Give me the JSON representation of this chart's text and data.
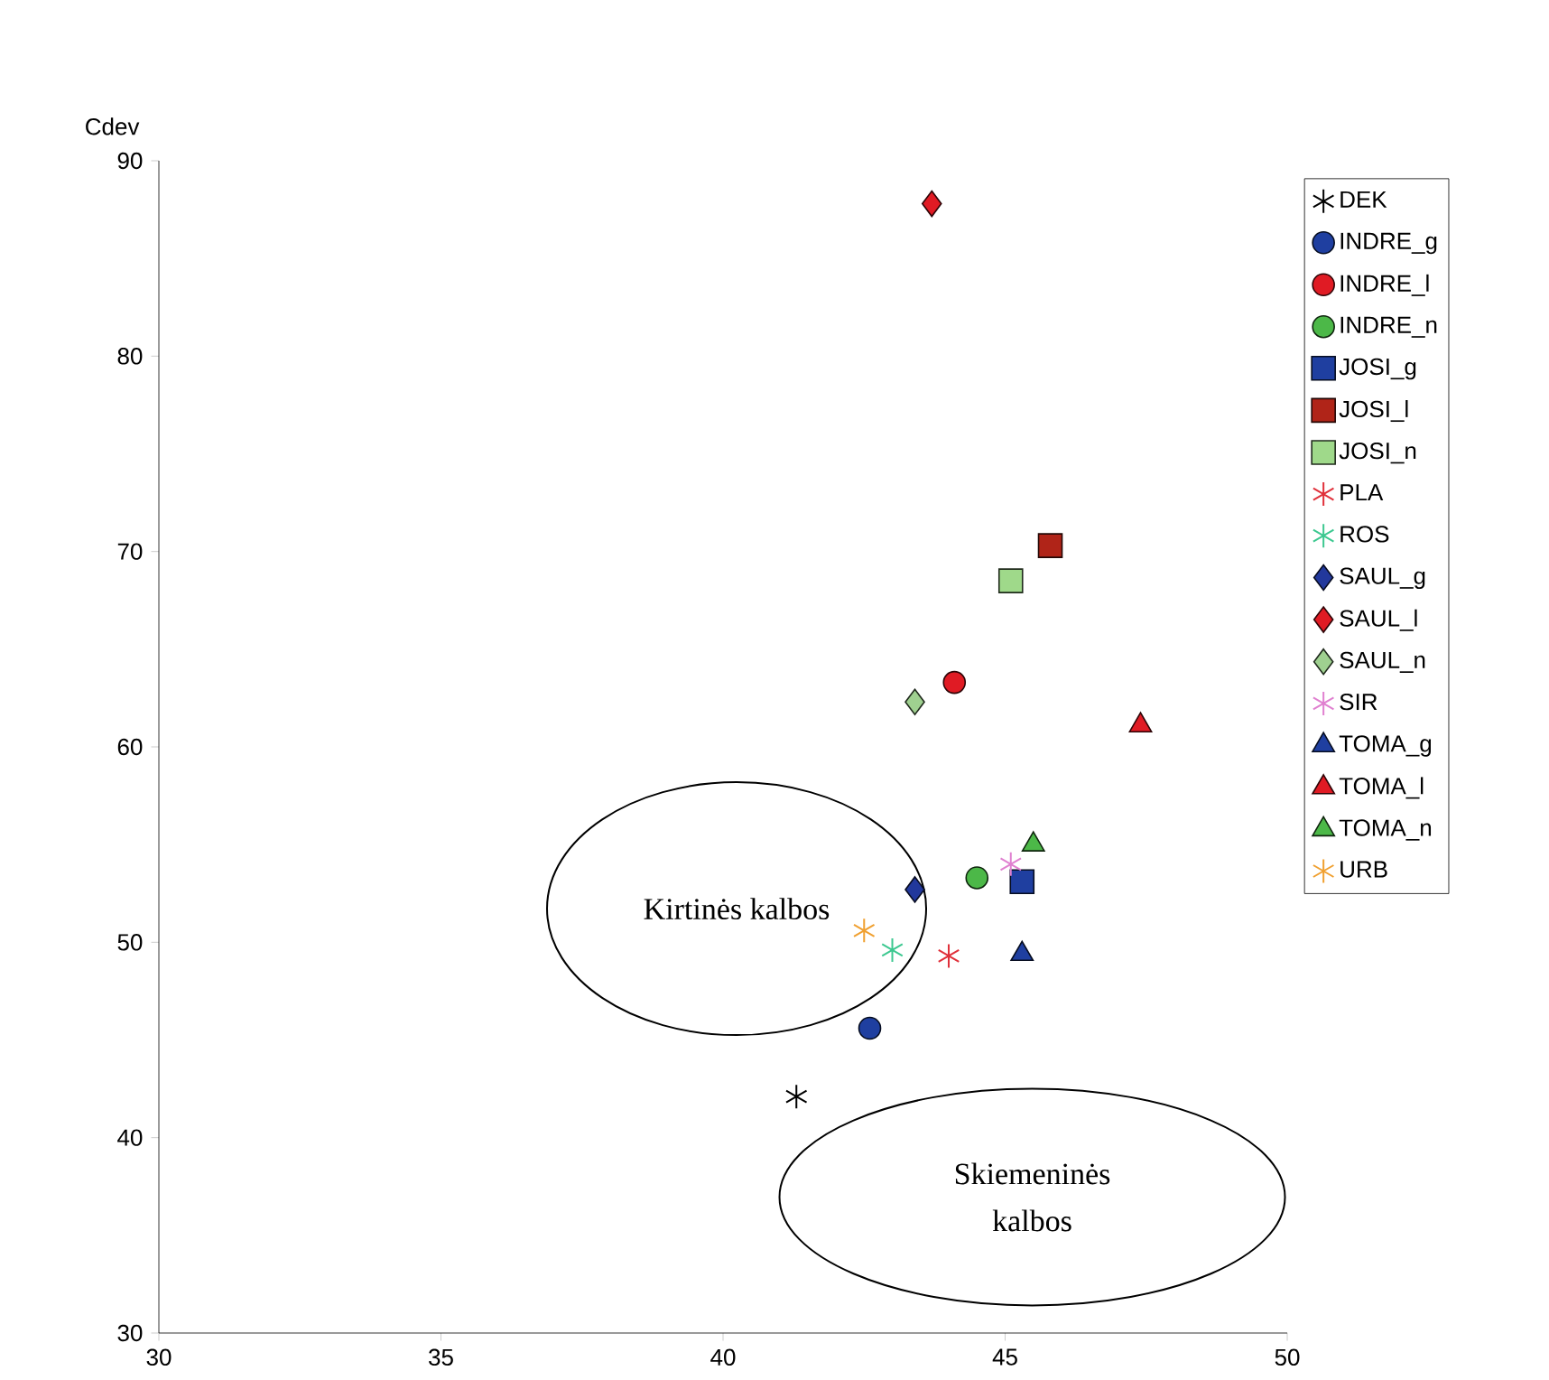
{
  "chart_data": {
    "type": "scatter",
    "ylabel": "Cdev",
    "xlim": [
      30,
      50
    ],
    "ylim": [
      30,
      90
    ],
    "xticks": [
      30,
      35,
      40,
      45,
      50
    ],
    "yticks": [
      30,
      40,
      50,
      60,
      70,
      80,
      90
    ],
    "grid": false,
    "legend": "right",
    "series": [
      {
        "name": "DEK",
        "color": "#000000",
        "marker": "cross",
        "x": [
          41.3
        ],
        "values": [
          42.1
        ]
      },
      {
        "name": "INDRE_g",
        "color": "#1f3fa0",
        "marker": "circle",
        "x": [
          42.6
        ],
        "values": [
          45.6
        ]
      },
      {
        "name": "INDRE_l",
        "color": "#e01b24",
        "marker": "circle",
        "x": [
          44.1
        ],
        "values": [
          63.3
        ]
      },
      {
        "name": "INDRE_n",
        "color": "#4cb848",
        "marker": "circle",
        "x": [
          44.5
        ],
        "values": [
          53.3
        ]
      },
      {
        "name": "JOSI_g",
        "color": "#1f3fa0",
        "marker": "square",
        "x": [
          45.3
        ],
        "values": [
          53.1
        ]
      },
      {
        "name": "JOSI_l",
        "color": "#b02418",
        "marker": "square",
        "x": [
          45.8
        ],
        "values": [
          70.3
        ]
      },
      {
        "name": "JOSI_n",
        "color": "#9fd98a",
        "marker": "square",
        "x": [
          45.1
        ],
        "values": [
          68.5
        ]
      },
      {
        "name": "PLA",
        "color": "#e0303a",
        "marker": "cross",
        "x": [
          44.0
        ],
        "values": [
          49.3
        ]
      },
      {
        "name": "ROS",
        "color": "#3cc890",
        "marker": "cross",
        "x": [
          43.0
        ],
        "values": [
          49.6
        ]
      },
      {
        "name": "SAUL_g",
        "color": "#22389c",
        "marker": "diamond",
        "x": [
          43.4
        ],
        "values": [
          52.7
        ]
      },
      {
        "name": "SAUL_l",
        "color": "#e01b24",
        "marker": "diamond",
        "x": [
          43.7
        ],
        "values": [
          87.8
        ]
      },
      {
        "name": "SAUL_n",
        "color": "#9fd090",
        "marker": "diamond",
        "x": [
          43.4
        ],
        "values": [
          62.3
        ]
      },
      {
        "name": "SIR",
        "color": "#e080d0",
        "marker": "cross",
        "x": [
          45.1
        ],
        "values": [
          54.0
        ]
      },
      {
        "name": "TOMA_g",
        "color": "#1f3fa0",
        "marker": "triangle",
        "x": [
          45.3
        ],
        "values": [
          49.4
        ]
      },
      {
        "name": "TOMA_l",
        "color": "#e01b24",
        "marker": "triangle",
        "x": [
          47.4
        ],
        "values": [
          61.1
        ]
      },
      {
        "name": "TOMA_n",
        "color": "#4cb848",
        "marker": "triangle",
        "x": [
          45.5
        ],
        "values": [
          55.0
        ]
      },
      {
        "name": "URB",
        "color": "#f0a030",
        "marker": "cross",
        "x": [
          42.5
        ],
        "values": [
          50.6
        ]
      }
    ],
    "annotations": [
      "Kirtinės kalbos",
      "Skiemeninės kalbos"
    ]
  }
}
